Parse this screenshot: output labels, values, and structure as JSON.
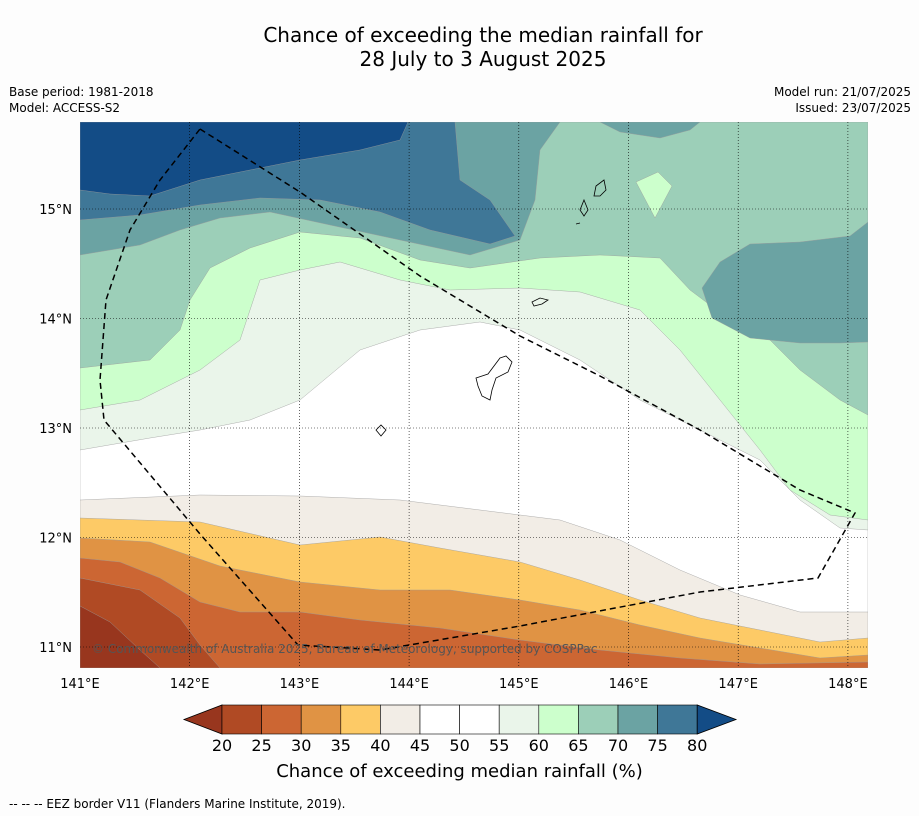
{
  "title": {
    "line1": "Chance of exceeding the median rainfall for",
    "line2": "28 July to 3 August 2025"
  },
  "meta_left": {
    "base_period": "Base period: 1981-2018",
    "model": "Model: ACCESS-S2"
  },
  "meta_right": {
    "model_run": "Model run: 21/07/2025",
    "issued": "Issued: 23/07/2025"
  },
  "map": {
    "lon_ticks": [
      "141°E",
      "142°E",
      "143°E",
      "144°E",
      "145°E",
      "146°E",
      "147°E",
      "148°E"
    ],
    "lat_ticks": [
      "15°N",
      "14°N",
      "13°N",
      "12°N",
      "11°N"
    ],
    "copyright": "© Commonwealth of Australia 2025, Bureau of Meteorology, supported by COSPPac",
    "grid": true
  },
  "colorbar": {
    "labels": [
      "20",
      "25",
      "30",
      "35",
      "40",
      "45",
      "50",
      "55",
      "60",
      "65",
      "70",
      "75",
      "80"
    ],
    "title": "Chance of exceeding median rainfall (%)",
    "colors": {
      "lt20": "#98361e",
      "20-25": "#b04a24",
      "25-30": "#cc6633",
      "30-35": "#e09344",
      "35-40": "#fdca66",
      "40-45": "#f2ede6",
      "45-50": "#ffffff",
      "50-55": "#ffffff",
      "55-60": "#eaf5ea",
      "60-65": "#ccffcc",
      "65-70": "#9ccfb8",
      "70-75": "#6ba3a3",
      "75-80": "#3f7797",
      "gt80": "#134c86"
    }
  },
  "footnote": "-- -- -- EEZ border V11 (Flanders Marine Institute, 2019)."
}
